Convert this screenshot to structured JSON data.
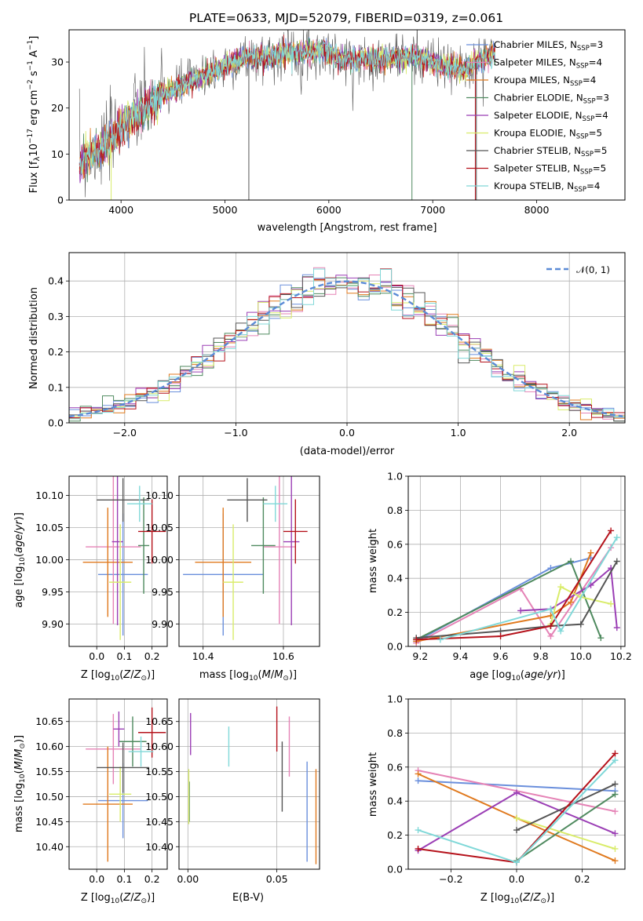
{
  "colors": [
    "#6a8fdc",
    "#e583b6",
    "#e07a1f",
    "#4f8a5f",
    "#9b3fb5",
    "#d9ec6a",
    "#555555",
    "#b5121b",
    "#80d8d8"
  ],
  "chart_data": [
    {
      "type": "line",
      "title": "PLATE=0633, MJD=52079, FIBERID=0319, z=0.061",
      "xlabel": "wavelength [Angstrom, rest frame]",
      "ylabel": "Flux [f_λ 10^-17 erg cm^-2 s^-1 A^-1]",
      "xlim": [
        3500,
        8850
      ],
      "ylim": [
        0,
        37
      ],
      "xticks": [
        4000,
        5000,
        6000,
        7000,
        8000
      ],
      "yticks": [
        0,
        10,
        20,
        30
      ],
      "legend_position": "top-right",
      "legend": [
        {
          "label": "Chabrier MILES, N",
          "sub": "SSP",
          "eq": "=3"
        },
        {
          "label": "Salpeter MILES, N",
          "sub": "SSP",
          "eq": "=4"
        },
        {
          "label": "Kroupa MILES, N",
          "sub": "SSP",
          "eq": "=4"
        },
        {
          "label": "Chabrier ELODIE, N",
          "sub": "SSP",
          "eq": "=3"
        },
        {
          "label": "Salpeter ELODIE, N",
          "sub": "SSP",
          "eq": "=4"
        },
        {
          "label": "Kroupa ELODIE, N",
          "sub": "SSP",
          "eq": "=5"
        },
        {
          "label": "Chabrier STELIB, N",
          "sub": "SSP",
          "eq": "=5"
        },
        {
          "label": "Salpeter STELIB, N",
          "sub": "SSP",
          "eq": "=5"
        },
        {
          "label": "Kroupa STELIB, N",
          "sub": "SSP",
          "eq": "=4"
        }
      ],
      "spectrum_envelope": {
        "x": [
          3600,
          3700,
          3800,
          3900,
          4000,
          4100,
          4200,
          4300,
          4400,
          4500,
          4600,
          4700,
          4800,
          4900,
          5000,
          5100,
          5200,
          5300,
          5400,
          5500,
          5600,
          5700,
          5800,
          5900,
          6000,
          6100,
          6200,
          6300,
          6400,
          6500,
          6600,
          6700,
          6800,
          6900,
          7000,
          7100,
          7200,
          7300,
          7400,
          7500,
          7600
        ],
        "y": [
          8,
          10,
          11,
          13,
          16,
          18,
          19,
          21,
          23,
          24,
          25,
          26,
          27,
          28,
          29,
          30,
          31,
          31,
          31,
          31.5,
          32,
          32,
          32,
          32.5,
          32,
          31,
          30.5,
          30.5,
          30.5,
          30.5,
          31,
          31,
          31,
          31,
          30,
          29,
          29,
          28,
          30,
          31,
          32
        ]
      }
    },
    {
      "type": "bar",
      "xlabel": "(data-model)/error",
      "ylabel": "Normed distribution",
      "xlim": [
        -2.5,
        2.5
      ],
      "ylim": [
        0,
        0.48
      ],
      "xticks": [
        -2,
        -1,
        0,
        1,
        2
      ],
      "yticks": [
        0.0,
        0.1,
        0.2,
        0.3,
        0.4
      ],
      "legend_position": "top-right",
      "legend": [
        "𝒩(0, 1)"
      ],
      "reference_curve": "normal(0,1)"
    },
    {
      "type": "scatter",
      "xlabel": "Z [log10(Z/Z⊙)]",
      "ylabel": "age [log10(age/yr)]",
      "xlim": [
        -0.1,
        0.255
      ],
      "ylim": [
        9.865,
        10.13
      ],
      "xticks": [
        0.0,
        0.1,
        0.2
      ],
      "yticks": [
        9.9,
        9.95,
        10.0,
        10.05,
        10.1
      ],
      "points": [
        {
          "c": 0,
          "x": 0.095,
          "y": 9.977,
          "xerr": 0.09,
          "yerr": 0.095
        },
        {
          "c": 1,
          "x": 0.06,
          "y": 10.02,
          "xerr": 0.1,
          "yerr": 0.12
        },
        {
          "c": 2,
          "x": 0.04,
          "y": 9.996,
          "xerr": 0.09,
          "yerr": 0.085
        },
        {
          "c": 3,
          "x": 0.17,
          "y": 10.022,
          "xerr": 0.02,
          "yerr": 0.075
        },
        {
          "c": 4,
          "x": 0.075,
          "y": 10.028,
          "xerr": 0.02,
          "yerr": 0.13
        },
        {
          "c": 5,
          "x": 0.085,
          "y": 9.965,
          "xerr": 0.04,
          "yerr": 0.09
        },
        {
          "c": 6,
          "x": 0.095,
          "y": 10.093,
          "xerr": 0.095,
          "yerr": 0.034
        },
        {
          "c": 7,
          "x": 0.2,
          "y": 10.044,
          "xerr": 0.05,
          "yerr": 0.05
        },
        {
          "c": 8,
          "x": 0.155,
          "y": 10.087,
          "xerr": 0.045,
          "yerr": 0.028
        }
      ]
    },
    {
      "type": "scatter",
      "xlabel": "mass [log10(M/M⊙)]",
      "ylabel": "",
      "xlim": [
        10.34,
        10.69
      ],
      "ylim": [
        9.865,
        10.13
      ],
      "xticks": [
        10.4,
        10.6
      ],
      "yticks": [
        9.9,
        9.95,
        10.0,
        10.05,
        10.1
      ],
      "points": [
        {
          "c": 0,
          "x": 10.45,
          "y": 9.977,
          "xerr": 0.1,
          "yerr": 0.095
        },
        {
          "c": 1,
          "x": 10.59,
          "y": 10.02,
          "xerr": 0.04,
          "yerr": 0.12
        },
        {
          "c": 2,
          "x": 10.45,
          "y": 9.996,
          "xerr": 0.07,
          "yerr": 0.085
        },
        {
          "c": 3,
          "x": 10.55,
          "y": 10.022,
          "xerr": 0.03,
          "yerr": 0.075
        },
        {
          "c": 4,
          "x": 10.62,
          "y": 10.028,
          "xerr": 0.02,
          "yerr": 0.13
        },
        {
          "c": 5,
          "x": 10.475,
          "y": 9.965,
          "xerr": 0.025,
          "yerr": 0.09
        },
        {
          "c": 6,
          "x": 10.51,
          "y": 10.093,
          "xerr": 0.05,
          "yerr": 0.034
        },
        {
          "c": 7,
          "x": 10.63,
          "y": 10.044,
          "xerr": 0.03,
          "yerr": 0.05
        },
        {
          "c": 8,
          "x": 10.58,
          "y": 10.087,
          "xerr": 0.03,
          "yerr": 0.028
        }
      ]
    },
    {
      "type": "line",
      "xlabel": "age [log10(age/yr)]",
      "ylabel": "mass weight",
      "xlim": [
        9.14,
        10.22
      ],
      "ylim": [
        0,
        1
      ],
      "xticks": [
        9.2,
        9.4,
        9.6,
        9.8,
        10.0,
        10.2
      ],
      "yticks": [
        0.0,
        0.2,
        0.4,
        0.6,
        0.8,
        1.0
      ],
      "series": [
        {
          "c": 0,
          "x": [
            9.18,
            9.85,
            10.05
          ],
          "y": [
            0.03,
            0.46,
            0.52
          ]
        },
        {
          "c": 1,
          "x": [
            9.18,
            9.7,
            9.85,
            10.15
          ],
          "y": [
            0.02,
            0.34,
            0.06,
            0.58
          ]
        },
        {
          "c": 2,
          "x": [
            9.18,
            9.85,
            9.95,
            10.05
          ],
          "y": [
            0.03,
            0.18,
            0.26,
            0.55
          ]
        },
        {
          "c": 3,
          "x": [
            9.18,
            9.95,
            10.1
          ],
          "y": [
            0.04,
            0.5,
            0.05
          ]
        },
        {
          "c": 4,
          "x": [
            9.7,
            9.85,
            10.05,
            10.15,
            10.18
          ],
          "y": [
            0.21,
            0.22,
            0.36,
            0.46,
            0.11
          ]
        },
        {
          "c": 5,
          "x": [
            9.85,
            9.9,
            10.0,
            10.15
          ],
          "y": [
            0.13,
            0.35,
            0.29,
            0.25
          ]
        },
        {
          "c": 6,
          "x": [
            9.18,
            9.6,
            9.85,
            10.0,
            10.18
          ],
          "y": [
            0.05,
            0.09,
            0.12,
            0.13,
            0.5
          ]
        },
        {
          "c": 7,
          "x": [
            9.18,
            9.6,
            9.85,
            10.15
          ],
          "y": [
            0.04,
            0.06,
            0.12,
            0.68
          ]
        },
        {
          "c": 8,
          "x": [
            9.3,
            9.85,
            9.9,
            10.18
          ],
          "y": [
            0.04,
            0.22,
            0.09,
            0.64
          ]
        }
      ]
    },
    {
      "type": "scatter",
      "xlabel": "Z [log10(Z/Z⊙)]",
      "ylabel": "mass [log10(M/M⊙)]",
      "xlim": [
        -0.1,
        0.255
      ],
      "ylim": [
        10.355,
        10.695
      ],
      "xticks": [
        0.0,
        0.1,
        0.2
      ],
      "yticks": [
        10.4,
        10.45,
        10.5,
        10.55,
        10.6,
        10.65
      ],
      "points": [
        {
          "c": 0,
          "x": 0.095,
          "y": 10.492,
          "xerr": 0.09,
          "yerr": 0.075
        },
        {
          "c": 1,
          "x": 0.06,
          "y": 10.595,
          "xerr": 0.1,
          "yerr": 0.07
        },
        {
          "c": 2,
          "x": 0.04,
          "y": 10.485,
          "xerr": 0.09,
          "yerr": 0.115
        },
        {
          "c": 3,
          "x": 0.13,
          "y": 10.61,
          "xerr": 0.05,
          "yerr": 0.05
        },
        {
          "c": 4,
          "x": 0.08,
          "y": 10.635,
          "xerr": 0.02,
          "yerr": 0.035
        },
        {
          "c": 5,
          "x": 0.085,
          "y": 10.505,
          "xerr": 0.04,
          "yerr": 0.055
        },
        {
          "c": 6,
          "x": 0.095,
          "y": 10.558,
          "xerr": 0.095,
          "yerr": 0.05
        },
        {
          "c": 7,
          "x": 0.2,
          "y": 10.628,
          "xerr": 0.05,
          "yerr": 0.05
        },
        {
          "c": 8,
          "x": 0.16,
          "y": 10.59,
          "xerr": 0.045,
          "yerr": 0.03
        }
      ]
    },
    {
      "type": "scatter",
      "xlabel": "E(B-V)",
      "ylabel": "",
      "xlim": [
        -0.005,
        0.074
      ],
      "ylim": [
        10.355,
        10.695
      ],
      "xticks": [
        0.0,
        0.05
      ],
      "yticks": [
        10.4,
        10.45,
        10.5,
        10.55,
        10.6,
        10.65
      ],
      "points": [
        {
          "c": 0,
          "x": 0.067,
          "y": 10.47,
          "yerr": 0.1
        },
        {
          "c": 1,
          "x": 0.057,
          "y": 10.6,
          "yerr": 0.06
        },
        {
          "c": 2,
          "x": 0.072,
          "y": 10.46,
          "yerr": 0.095
        },
        {
          "c": 3,
          "x": 0.0008,
          "y": 10.49,
          "yerr": 0.04
        },
        {
          "c": 4,
          "x": 0.0015,
          "y": 10.625,
          "yerr": 0.042
        },
        {
          "c": 5,
          "x": 0.0005,
          "y": 10.5,
          "yerr": 0.055
        },
        {
          "c": 6,
          "x": 0.053,
          "y": 10.54,
          "yerr": 0.07
        },
        {
          "c": 7,
          "x": 0.05,
          "y": 10.635,
          "yerr": 0.045
        },
        {
          "c": 8,
          "x": 0.023,
          "y": 10.6,
          "yerr": 0.04
        }
      ]
    },
    {
      "type": "line",
      "xlabel": "Z [log10(Z/Z⊙)]",
      "ylabel": "mass weight",
      "xlim": [
        -0.33,
        0.33
      ],
      "ylim": [
        0,
        1
      ],
      "xticks": [
        -0.2,
        0.0,
        0.2
      ],
      "yticks": [
        0.0,
        0.2,
        0.4,
        0.6,
        0.8,
        1.0
      ],
      "series": [
        {
          "c": 0,
          "x": [
            -0.3,
            0.3
          ],
          "y": [
            0.52,
            0.46
          ]
        },
        {
          "c": 1,
          "x": [
            -0.3,
            0.3
          ],
          "y": [
            0.58,
            0.34
          ]
        },
        {
          "c": 2,
          "x": [
            -0.3,
            0.0,
            0.3
          ],
          "y": [
            0.56,
            0.3,
            0.05
          ]
        },
        {
          "c": 3,
          "x": [
            0.0,
            0.3
          ],
          "y": [
            0.05,
            0.44
          ]
        },
        {
          "c": 4,
          "x": [
            -0.3,
            0.0,
            0.3
          ],
          "y": [
            0.11,
            0.45,
            0.21
          ]
        },
        {
          "c": 5,
          "x": [
            0.0,
            0.3
          ],
          "y": [
            0.3,
            0.12
          ]
        },
        {
          "c": 6,
          "x": [
            0.0,
            0.3
          ],
          "y": [
            0.23,
            0.5
          ]
        },
        {
          "c": 7,
          "x": [
            -0.3,
            0.0,
            0.3
          ],
          "y": [
            0.12,
            0.04,
            0.68
          ]
        },
        {
          "c": 8,
          "x": [
            -0.3,
            0.0,
            0.3
          ],
          "y": [
            0.23,
            0.04,
            0.64
          ]
        }
      ]
    }
  ]
}
